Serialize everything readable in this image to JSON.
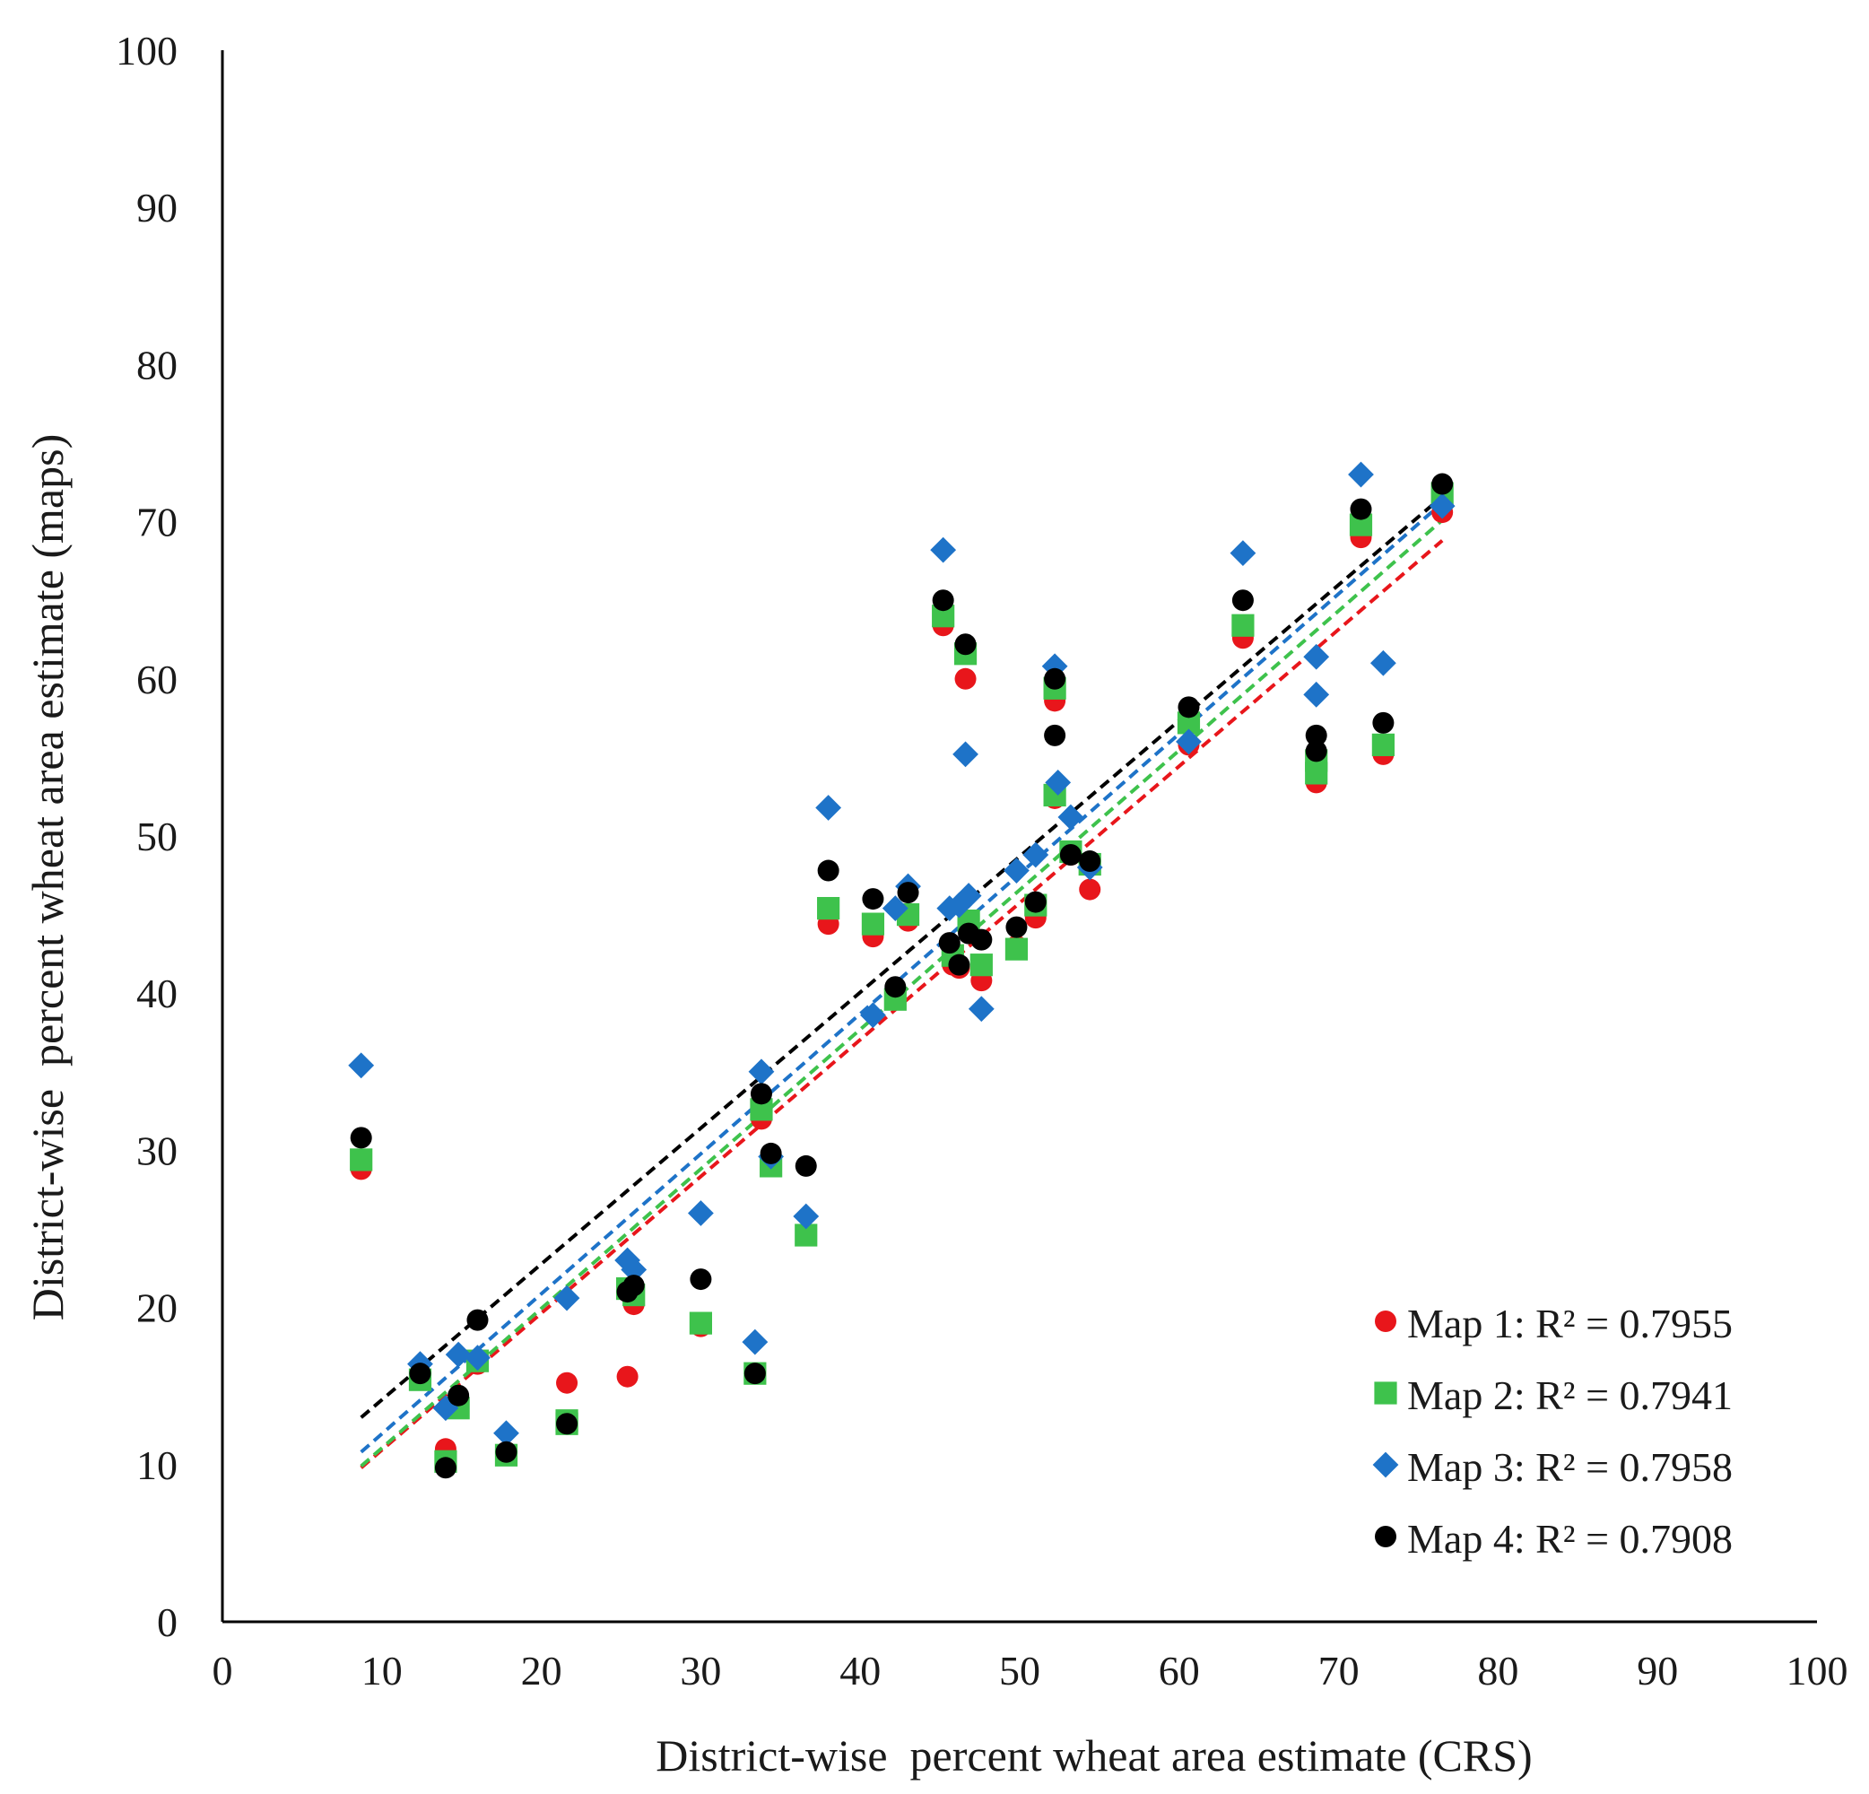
{
  "chart_data": {
    "type": "scatter",
    "title": "",
    "xlabel": "District-wise  percent wheat area estimate (CRS)",
    "ylabel": "District-wise  percent wheat area estimate (maps)",
    "xlim": [
      0,
      100
    ],
    "ylim": [
      0,
      100
    ],
    "xticks": [
      "0",
      "10",
      "20",
      "30",
      "40",
      "50",
      "60",
      "70",
      "80",
      "90",
      "100"
    ],
    "yticks": [
      "0",
      "10",
      "20",
      "30",
      "40",
      "50",
      "60",
      "70",
      "80",
      "90",
      "100"
    ],
    "grid": false,
    "legend_position": "bottom-right",
    "series": [
      {
        "name": "Map 1",
        "legend_label": "Map 1: R² = 0.7955",
        "color": "#e8161b",
        "marker": "circle",
        "trendline": {
          "x": [
            8.7,
            76.5
          ],
          "y": [
            9.8,
            68.8
          ]
        },
        "points": [
          [
            8.7,
            28.8
          ],
          [
            12.4,
            15.4
          ],
          [
            14.0,
            11.0
          ],
          [
            14.8,
            13.8
          ],
          [
            16.0,
            16.4
          ],
          [
            17.8,
            10.8
          ],
          [
            21.6,
            15.2
          ],
          [
            21.6,
            12.8
          ],
          [
            25.4,
            15.6
          ],
          [
            25.4,
            21.0
          ],
          [
            25.8,
            20.2
          ],
          [
            30.0,
            18.8
          ],
          [
            33.4,
            15.8
          ],
          [
            33.8,
            32.0
          ],
          [
            34.4,
            29.2
          ],
          [
            36.6,
            24.6
          ],
          [
            38.0,
            44.4
          ],
          [
            40.8,
            43.6
          ],
          [
            42.2,
            39.6
          ],
          [
            43.0,
            44.6
          ],
          [
            45.2,
            63.4
          ],
          [
            45.8,
            41.8
          ],
          [
            46.2,
            41.6
          ],
          [
            46.6,
            60.0
          ],
          [
            46.8,
            44.0
          ],
          [
            47.6,
            40.8
          ],
          [
            49.8,
            43.0
          ],
          [
            51.0,
            44.8
          ],
          [
            52.2,
            58.6
          ],
          [
            52.2,
            52.4
          ],
          [
            53.2,
            48.8
          ],
          [
            54.4,
            46.6
          ],
          [
            60.6,
            55.8
          ],
          [
            64.0,
            62.6
          ],
          [
            68.6,
            53.4
          ],
          [
            68.6,
            54.2
          ],
          [
            71.4,
            69.0
          ],
          [
            72.8,
            55.2
          ],
          [
            76.5,
            70.6
          ]
        ]
      },
      {
        "name": "Map 2",
        "legend_label": "Map 2:  R² = 0.7941",
        "color": "#3ec24c",
        "marker": "square",
        "trendline": {
          "x": [
            8.7,
            76.5
          ],
          "y": [
            9.9,
            70.1
          ]
        },
        "points": [
          [
            8.7,
            29.4
          ],
          [
            12.4,
            15.4
          ],
          [
            14.0,
            10.2
          ],
          [
            14.8,
            13.6
          ],
          [
            16.0,
            16.6
          ],
          [
            17.8,
            10.6
          ],
          [
            21.6,
            12.8
          ],
          [
            21.6,
            12.6
          ],
          [
            25.4,
            21.2
          ],
          [
            25.8,
            20.8
          ],
          [
            30.0,
            19.0
          ],
          [
            33.4,
            15.8
          ],
          [
            33.8,
            32.6
          ],
          [
            34.4,
            29.0
          ],
          [
            36.6,
            24.6
          ],
          [
            38.0,
            45.4
          ],
          [
            40.8,
            44.4
          ],
          [
            42.2,
            39.6
          ],
          [
            43.0,
            45.0
          ],
          [
            45.2,
            64.0
          ],
          [
            45.8,
            42.4
          ],
          [
            46.6,
            61.6
          ],
          [
            46.8,
            44.6
          ],
          [
            47.6,
            41.8
          ],
          [
            49.8,
            42.8
          ],
          [
            51.0,
            45.6
          ],
          [
            52.2,
            59.4
          ],
          [
            52.2,
            52.6
          ],
          [
            53.2,
            49.0
          ],
          [
            54.4,
            48.2
          ],
          [
            60.6,
            57.2
          ],
          [
            64.0,
            63.4
          ],
          [
            68.6,
            54.0
          ],
          [
            68.6,
            54.8
          ],
          [
            71.4,
            69.8
          ],
          [
            72.8,
            55.8
          ],
          [
            76.5,
            71.8
          ]
        ]
      },
      {
        "name": "Map 3",
        "legend_label": "Map 3: R² = 0.7958",
        "color": "#1e73c8",
        "marker": "diamond",
        "trendline": {
          "x": [
            8.7,
            76.5
          ],
          "y": [
            10.8,
            71.2
          ]
        },
        "points": [
          [
            8.7,
            35.4
          ],
          [
            12.4,
            16.4
          ],
          [
            14.0,
            13.6
          ],
          [
            14.8,
            17.0
          ],
          [
            16.0,
            16.8
          ],
          [
            17.8,
            12.0
          ],
          [
            21.6,
            20.6
          ],
          [
            25.4,
            23.0
          ],
          [
            25.8,
            22.4
          ],
          [
            30.0,
            26.0
          ],
          [
            33.4,
            17.8
          ],
          [
            33.8,
            35.0
          ],
          [
            34.4,
            29.6
          ],
          [
            36.6,
            25.8
          ],
          [
            38.0,
            51.8
          ],
          [
            40.8,
            38.6
          ],
          [
            42.2,
            45.4
          ],
          [
            43.0,
            46.8
          ],
          [
            45.2,
            68.2
          ],
          [
            45.6,
            45.4
          ],
          [
            46.2,
            45.6
          ],
          [
            46.6,
            55.2
          ],
          [
            46.8,
            46.2
          ],
          [
            47.6,
            39.0
          ],
          [
            49.8,
            47.8
          ],
          [
            51.0,
            48.8
          ],
          [
            52.2,
            60.8
          ],
          [
            52.4,
            53.4
          ],
          [
            53.2,
            51.2
          ],
          [
            54.4,
            48.0
          ],
          [
            60.6,
            56.0
          ],
          [
            64.0,
            68.0
          ],
          [
            68.6,
            61.4
          ],
          [
            68.6,
            59.0
          ],
          [
            71.4,
            73.0
          ],
          [
            72.8,
            61.0
          ],
          [
            76.5,
            71.0
          ]
        ]
      },
      {
        "name": "Map 4",
        "legend_label": "Map 4: R² = 0.7908",
        "color": "#000000",
        "marker": "circle",
        "trendline": {
          "x": [
            8.7,
            76.5
          ],
          "y": [
            13.0,
            71.6
          ]
        },
        "points": [
          [
            8.7,
            30.8
          ],
          [
            12.4,
            15.8
          ],
          [
            14.0,
            9.8
          ],
          [
            14.8,
            14.4
          ],
          [
            16.0,
            19.2
          ],
          [
            17.8,
            10.8
          ],
          [
            21.6,
            12.6
          ],
          [
            25.4,
            21.0
          ],
          [
            25.8,
            21.4
          ],
          [
            30.0,
            21.8
          ],
          [
            33.4,
            15.8
          ],
          [
            33.8,
            33.6
          ],
          [
            34.4,
            29.8
          ],
          [
            36.6,
            29.0
          ],
          [
            38.0,
            47.8
          ],
          [
            40.8,
            46.0
          ],
          [
            42.2,
            40.4
          ],
          [
            43.0,
            46.4
          ],
          [
            45.2,
            65.0
          ],
          [
            45.6,
            43.2
          ],
          [
            46.2,
            41.8
          ],
          [
            46.6,
            62.2
          ],
          [
            46.8,
            43.8
          ],
          [
            47.6,
            43.4
          ],
          [
            49.8,
            44.2
          ],
          [
            51.0,
            45.8
          ],
          [
            52.2,
            60.0
          ],
          [
            52.2,
            56.4
          ],
          [
            53.2,
            48.8
          ],
          [
            54.4,
            48.4
          ],
          [
            60.6,
            58.2
          ],
          [
            64.0,
            65.0
          ],
          [
            68.6,
            56.4
          ],
          [
            68.6,
            55.4
          ],
          [
            71.4,
            70.8
          ],
          [
            72.8,
            57.2
          ],
          [
            76.5,
            72.4
          ]
        ]
      }
    ]
  }
}
